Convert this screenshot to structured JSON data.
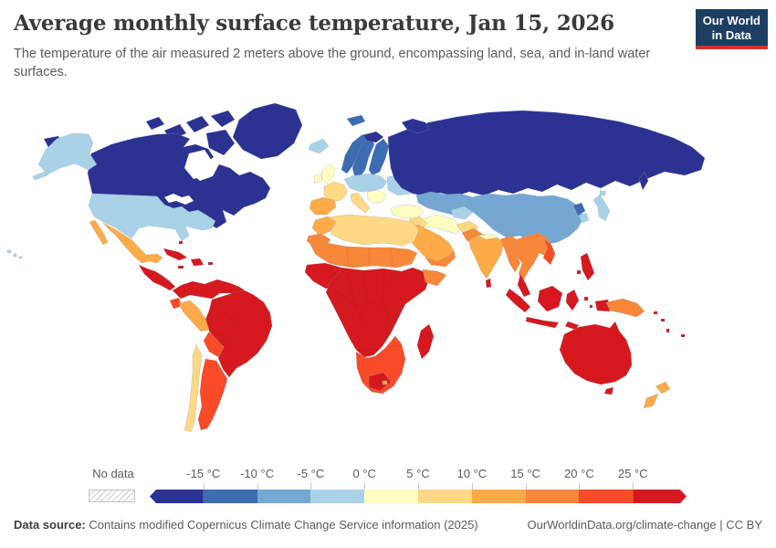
{
  "header": {
    "title": "Average monthly surface temperature, Jan 15, 2026",
    "subtitle": "The temperature of the air measured 2 meters above the ground, encompassing land, sea, and in-land water surfaces.",
    "logo": {
      "line1": "Our World",
      "line2": "in Data",
      "bg_color": "#1d3d63",
      "stripe_color": "#d0342c"
    }
  },
  "legend": {
    "no_data_label": "No data",
    "tick_labels": [
      "-15 °C",
      "-10 °C",
      "-5 °C",
      "0 °C",
      "5 °C",
      "10 °C",
      "15 °C",
      "20 °C",
      "25 °C"
    ],
    "segment_colors": [
      "#2c3292",
      "#3d6cb3",
      "#74a8d3",
      "#a9d2e8",
      "#fdfec2",
      "#fed884",
      "#fdaa48",
      "#f8873a",
      "#f94b28",
      "#d6181f"
    ]
  },
  "footer": {
    "source_label": "Data source:",
    "source_text": " Contains modified Copernicus Climate Change Service information (2025)",
    "link_text": "OurWorldinData.org/climate-change | CC BY"
  },
  "chart_data": {
    "type": "choropleth_map",
    "title": "Average monthly surface temperature, Jan 15, 2026",
    "date": "Jan 15, 2026",
    "unit": "°C",
    "legend_position": "bottom",
    "bands": [
      {
        "id": "b1",
        "range": "< -15 °C",
        "color": "#2c3292"
      },
      {
        "id": "b2",
        "range": "-15 to -10 °C",
        "color": "#3d6cb3"
      },
      {
        "id": "b3",
        "range": "-10 to -5 °C",
        "color": "#74a8d3"
      },
      {
        "id": "b4",
        "range": "-5 to 0 °C",
        "color": "#a9d2e8"
      },
      {
        "id": "b5",
        "range": "0 to 5 °C",
        "color": "#fdfec2"
      },
      {
        "id": "b6",
        "range": "5 to 10 °C",
        "color": "#fed884"
      },
      {
        "id": "b7",
        "range": "10 to 15 °C",
        "color": "#fdaa48"
      },
      {
        "id": "b8",
        "range": "15 to 20 °C",
        "color": "#f8873a"
      },
      {
        "id": "b9",
        "range": "20 to 25 °C",
        "color": "#f94b28"
      },
      {
        "id": "b10",
        "range": "> 25 °C",
        "color": "#d6181f"
      }
    ],
    "regions": {
      "greenland": "b1",
      "arctic-islands": "b1",
      "chukotka": "b1",
      "canada": "b1",
      "alaska": "b4",
      "usa": "b4",
      "hawaii": "b4",
      "mexico": "b7",
      "central-america": "b10",
      "cuba": "b10",
      "hispaniola": "b10",
      "puerto-rico": "b10",
      "jamaica": "b10",
      "bahamas": "b10",
      "colombia-venezuela": "b10",
      "ecuador": "b9",
      "peru": "b7",
      "brazil": "b10",
      "bolivia": "b9",
      "argentina": "b9",
      "chile": "b6",
      "iceland": "b4",
      "svalbard": "b2",
      "uk": "b5",
      "ireland": "b5",
      "norway": "b2",
      "sweden": "b2",
      "finland": "b2",
      "scandinavia-north": "b1",
      "denmark": "b5",
      "central-europe": "b4",
      "eastern-europe": "b4",
      "france": "b6",
      "iberia": "b7",
      "italy": "b6",
      "balkans": "b5",
      "turkey": "b5",
      "russia": "b1",
      "novaya-zemlya": "b1",
      "sakhalin": "b1",
      "kazakhstan": "b3",
      "turkmenistan": "b4",
      "china": "b3",
      "north-korea": "b2",
      "south-korea": "b4",
      "japan": "b4",
      "iran": "b5",
      "iraq-syria": "b6",
      "arabia": "b7",
      "yemen-oman": "b8",
      "afghanistan": "b6",
      "pakistan": "b8",
      "india": "b7",
      "nepal": "b5",
      "bangladesh-myanmar": "b8",
      "sri-lanka": "b10",
      "indochina": "b8",
      "vietnam": "b9",
      "malay-peninsula": "b10",
      "philippines": "b10",
      "sumatra": "b10",
      "java": "b10",
      "borneo": "b10",
      "sulawesi": "b10",
      "moluccas": "b10",
      "timor": "b10",
      "west-papua": "b10",
      "papua-new-guinea": "b8",
      "solomon-islands": "b10",
      "vanuatu": "b10",
      "fiji": "b10",
      "australia": "b10",
      "tasmania": "b10",
      "new-zealand": "b7",
      "morocco": "b7",
      "mauritania": "b8",
      "north-africa": "b6",
      "sahel": "b8",
      "west-africa": "b10",
      "central-east-africa": "b10",
      "horn-of-africa": "b8",
      "southern-africa": "b9",
      "south-africa-patch": "b10",
      "lesotho": "b7",
      "madagascar": "b10"
    }
  }
}
